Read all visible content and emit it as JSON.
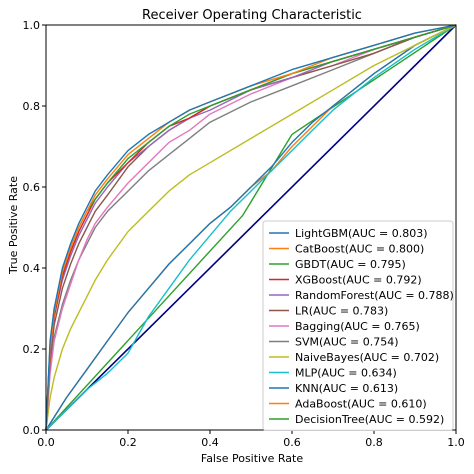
{
  "chart_data": {
    "type": "line",
    "title": "Receiver Operating Characteristic",
    "xlabel": "False Positive Rate",
    "ylabel": "True Positive Rate",
    "xlim": [
      0.0,
      1.0
    ],
    "ylim": [
      0.0,
      1.0
    ],
    "xticks": [
      "0.0",
      "0.2",
      "0.4",
      "0.6",
      "0.8",
      "1.0"
    ],
    "yticks": [
      "0.0",
      "0.2",
      "0.4",
      "0.6",
      "0.8",
      "1.0"
    ],
    "grid": false,
    "legend_position": "lower-right",
    "diagonal": {
      "x": [
        0,
        1
      ],
      "y": [
        0,
        1
      ],
      "color": "#000080"
    },
    "series": [
      {
        "name": "LightGBM(AUC = 0.803)",
        "color": "#1f77b4",
        "x": [
          0,
          0.01,
          0.02,
          0.04,
          0.06,
          0.08,
          0.1,
          0.12,
          0.15,
          0.2,
          0.25,
          0.3,
          0.35,
          0.4,
          0.5,
          0.6,
          0.7,
          0.8,
          0.9,
          1.0
        ],
        "y": [
          0,
          0.22,
          0.3,
          0.4,
          0.46,
          0.51,
          0.55,
          0.59,
          0.63,
          0.69,
          0.73,
          0.76,
          0.79,
          0.81,
          0.85,
          0.89,
          0.92,
          0.95,
          0.98,
          1.0
        ]
      },
      {
        "name": "CatBoost(AUC = 0.800)",
        "color": "#ff7f0e",
        "x": [
          0,
          0.01,
          0.02,
          0.04,
          0.06,
          0.08,
          0.1,
          0.12,
          0.15,
          0.2,
          0.25,
          0.3,
          0.35,
          0.4,
          0.5,
          0.6,
          0.7,
          0.8,
          0.9,
          1.0
        ],
        "y": [
          0,
          0.2,
          0.29,
          0.39,
          0.45,
          0.5,
          0.54,
          0.58,
          0.62,
          0.68,
          0.72,
          0.76,
          0.79,
          0.81,
          0.85,
          0.88,
          0.92,
          0.95,
          0.98,
          1.0
        ]
      },
      {
        "name": "GBDT(AUC = 0.795)",
        "color": "#2ca02c",
        "x": [
          0,
          0.01,
          0.02,
          0.04,
          0.06,
          0.08,
          0.1,
          0.12,
          0.15,
          0.2,
          0.25,
          0.3,
          0.35,
          0.4,
          0.5,
          0.6,
          0.7,
          0.8,
          0.9,
          1.0
        ],
        "y": [
          0,
          0.21,
          0.3,
          0.39,
          0.45,
          0.5,
          0.54,
          0.57,
          0.61,
          0.67,
          0.71,
          0.75,
          0.78,
          0.8,
          0.84,
          0.88,
          0.91,
          0.94,
          0.97,
          1.0
        ]
      },
      {
        "name": "XGBoost(AUC = 0.792)",
        "color": "#d62728",
        "x": [
          0,
          0.01,
          0.02,
          0.04,
          0.06,
          0.08,
          0.1,
          0.12,
          0.15,
          0.2,
          0.25,
          0.3,
          0.35,
          0.4,
          0.5,
          0.6,
          0.7,
          0.8,
          0.9,
          1.0
        ],
        "y": [
          0,
          0.2,
          0.28,
          0.38,
          0.44,
          0.49,
          0.53,
          0.57,
          0.61,
          0.66,
          0.71,
          0.75,
          0.77,
          0.8,
          0.84,
          0.88,
          0.91,
          0.94,
          0.97,
          1.0
        ]
      },
      {
        "name": "RandomForest(AUC = 0.788)",
        "color": "#9467bd",
        "x": [
          0,
          0.01,
          0.02,
          0.04,
          0.06,
          0.08,
          0.1,
          0.12,
          0.15,
          0.2,
          0.25,
          0.3,
          0.35,
          0.4,
          0.5,
          0.6,
          0.7,
          0.8,
          0.9,
          1.0
        ],
        "y": [
          0,
          0.19,
          0.28,
          0.37,
          0.43,
          0.48,
          0.52,
          0.56,
          0.6,
          0.66,
          0.7,
          0.74,
          0.77,
          0.79,
          0.84,
          0.87,
          0.91,
          0.94,
          0.97,
          1.0
        ]
      },
      {
        "name": "LR(AUC = 0.783)",
        "color": "#8c564b",
        "x": [
          0,
          0.01,
          0.02,
          0.04,
          0.06,
          0.08,
          0.1,
          0.12,
          0.15,
          0.2,
          0.25,
          0.3,
          0.35,
          0.4,
          0.5,
          0.6,
          0.7,
          0.8,
          0.9,
          1.0
        ],
        "y": [
          0,
          0.17,
          0.26,
          0.35,
          0.41,
          0.46,
          0.5,
          0.54,
          0.58,
          0.65,
          0.7,
          0.74,
          0.77,
          0.8,
          0.84,
          0.87,
          0.9,
          0.93,
          0.97,
          1.0
        ]
      },
      {
        "name": "Bagging(AUC = 0.765)",
        "color": "#e377c2",
        "x": [
          0,
          0.01,
          0.02,
          0.04,
          0.06,
          0.08,
          0.1,
          0.12,
          0.15,
          0.2,
          0.25,
          0.3,
          0.35,
          0.4,
          0.5,
          0.6,
          0.7,
          0.8,
          0.9,
          1.0
        ],
        "y": [
          0,
          0.14,
          0.22,
          0.3,
          0.36,
          0.42,
          0.47,
          0.51,
          0.55,
          0.61,
          0.66,
          0.71,
          0.74,
          0.78,
          0.83,
          0.87,
          0.9,
          0.94,
          0.97,
          1.0
        ]
      },
      {
        "name": "SVM(AUC = 0.754)",
        "color": "#7f7f7f",
        "x": [
          0,
          0.01,
          0.02,
          0.04,
          0.06,
          0.08,
          0.1,
          0.12,
          0.15,
          0.2,
          0.25,
          0.3,
          0.35,
          0.4,
          0.5,
          0.6,
          0.7,
          0.8,
          0.9,
          1.0
        ],
        "y": [
          0,
          0.15,
          0.23,
          0.31,
          0.37,
          0.42,
          0.46,
          0.5,
          0.54,
          0.59,
          0.64,
          0.68,
          0.72,
          0.76,
          0.81,
          0.85,
          0.89,
          0.93,
          0.97,
          1.0
        ]
      },
      {
        "name": "NaiveBayes(AUC = 0.702)",
        "color": "#bcbd22",
        "x": [
          0,
          0.01,
          0.02,
          0.04,
          0.06,
          0.08,
          0.1,
          0.12,
          0.15,
          0.2,
          0.25,
          0.3,
          0.35,
          0.4,
          0.5,
          0.6,
          0.7,
          0.8,
          0.9,
          1.0
        ],
        "y": [
          0,
          0.08,
          0.13,
          0.2,
          0.25,
          0.29,
          0.33,
          0.37,
          0.42,
          0.49,
          0.54,
          0.59,
          0.63,
          0.66,
          0.72,
          0.78,
          0.84,
          0.9,
          0.95,
          1.0
        ]
      },
      {
        "name": "MLP(AUC = 0.634)",
        "color": "#17becf",
        "x": [
          0,
          0.05,
          0.1,
          0.15,
          0.2,
          0.25,
          0.3,
          0.35,
          0.4,
          0.45,
          0.5,
          0.55,
          0.6,
          0.65,
          0.7,
          0.8,
          0.9,
          1.0
        ],
        "y": [
          0,
          0.05,
          0.1,
          0.14,
          0.19,
          0.28,
          0.35,
          0.42,
          0.48,
          0.54,
          0.59,
          0.64,
          0.69,
          0.74,
          0.79,
          0.87,
          0.94,
          1.0
        ]
      },
      {
        "name": "KNN(AUC = 0.613)",
        "color": "#1f77b4",
        "x": [
          0,
          0.05,
          0.1,
          0.15,
          0.2,
          0.25,
          0.3,
          0.35,
          0.4,
          0.45,
          0.5,
          0.55,
          0.6,
          0.65,
          0.7,
          0.8,
          0.9,
          1.0
        ],
        "y": [
          0,
          0.08,
          0.15,
          0.22,
          0.29,
          0.35,
          0.41,
          0.46,
          0.51,
          0.55,
          0.6,
          0.65,
          0.71,
          0.76,
          0.8,
          0.88,
          0.95,
          1.0
        ]
      },
      {
        "name": "AdaBoost(AUC = 0.610)",
        "color": "#ff7f0e",
        "x": [
          0,
          0.05,
          0.1,
          0.15,
          0.2,
          0.25,
          0.3,
          0.35,
          0.4,
          0.45,
          0.5,
          0.55,
          0.6,
          0.65,
          0.7,
          0.8,
          0.9,
          1.0
        ],
        "y": [
          0,
          0.08,
          0.15,
          0.22,
          0.29,
          0.35,
          0.41,
          0.46,
          0.51,
          0.55,
          0.6,
          0.64,
          0.7,
          0.75,
          0.8,
          0.88,
          0.95,
          1.0
        ]
      },
      {
        "name": "DecisionTree(AUC = 0.592)",
        "color": "#2ca02c",
        "x": [
          0,
          0.48,
          0.6,
          1.0
        ],
        "y": [
          0,
          0.53,
          0.73,
          1.0
        ]
      }
    ]
  }
}
